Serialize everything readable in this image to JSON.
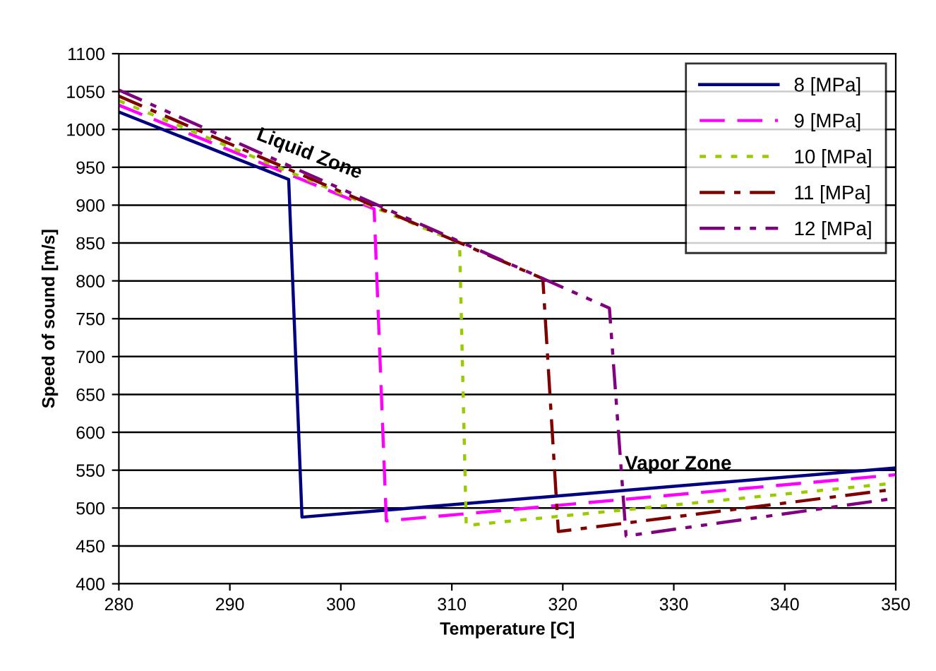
{
  "chart_data": {
    "type": "line",
    "xlabel": "Temperature [C]",
    "ylabel": "Speed of sound [m/s]",
    "xlim": [
      280,
      350
    ],
    "xticks": [
      280,
      290,
      300,
      310,
      320,
      330,
      340,
      350
    ],
    "ylim": [
      400,
      1100
    ],
    "yticks": [
      400,
      450,
      500,
      550,
      600,
      650,
      700,
      750,
      800,
      850,
      900,
      950,
      1000,
      1050,
      1100
    ],
    "grid": "y",
    "legend": "top right",
    "marker": "none",
    "annotations": [
      "Liquid Zone",
      "Vapor Zone"
    ],
    "series": [
      {
        "name": "8 [MPa]",
        "color": "#000080",
        "line_style": "solid",
        "x": [
          280,
          295.3,
          296.5,
          350
        ],
        "values": [
          1023,
          934,
          488,
          553
        ]
      },
      {
        "name": "9 [MPa]",
        "color": "#ff00ff",
        "line_style": "dashed",
        "x": [
          280,
          303.0,
          304.1,
          350
        ],
        "values": [
          1032,
          895,
          483,
          544
        ]
      },
      {
        "name": "10 [MPa]",
        "color": "#99cc00",
        "line_style": "dotted",
        "x": [
          280,
          310.7,
          311.3,
          350
        ],
        "values": [
          1038,
          850,
          477,
          533
        ]
      },
      {
        "name": "11 [MPa]",
        "color": "#800000",
        "line_style": "dashdot",
        "x": [
          280,
          318.2,
          319.6,
          350
        ],
        "values": [
          1044,
          803,
          469,
          525
        ]
      },
      {
        "name": "12 [MPa]",
        "color": "#800080",
        "line_style": "dashdotdot",
        "x": [
          280,
          324.2,
          325.7,
          350
        ],
        "values": [
          1052,
          764,
          463,
          513
        ]
      }
    ]
  }
}
